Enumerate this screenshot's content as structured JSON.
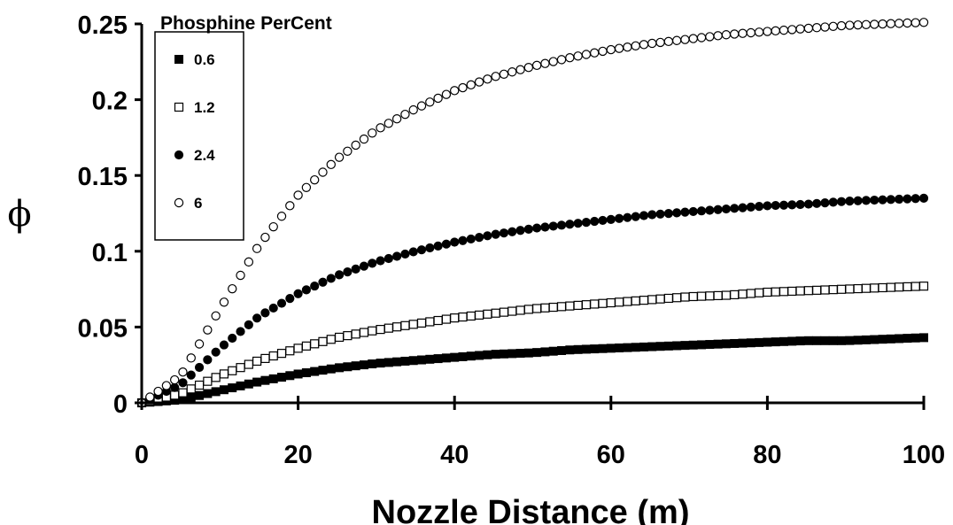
{
  "chart_data": {
    "type": "scatter",
    "title": "",
    "xlabel": "Nozzle Distance (m)",
    "ylabel": "ϕ",
    "xlim": [
      0,
      100
    ],
    "ylim": [
      0,
      0.25
    ],
    "x_ticks": [
      0,
      20,
      40,
      60,
      80,
      100
    ],
    "x_tick_labels": [
      "0",
      "20",
      "40",
      "60",
      "80",
      "100"
    ],
    "y_ticks": [
      0,
      0.05,
      0.1,
      0.15,
      0.2,
      0.25
    ],
    "y_tick_labels": [
      "0",
      "0.05",
      "0.1",
      "0.15",
      "0.2",
      "0.25"
    ],
    "grid": false,
    "legend": {
      "title": "Phosphine PerCent",
      "placement": "top-left"
    },
    "x": [
      0,
      5,
      10,
      15,
      20,
      25,
      30,
      35,
      40,
      45,
      50,
      55,
      60,
      65,
      70,
      75,
      80,
      85,
      90,
      95,
      100
    ],
    "series": [
      {
        "name": "0.6",
        "marker": "filled-square",
        "values": [
          0,
          0.002,
          0.008,
          0.014,
          0.019,
          0.023,
          0.026,
          0.028,
          0.03,
          0.032,
          0.033,
          0.035,
          0.036,
          0.037,
          0.038,
          0.039,
          0.04,
          0.041,
          0.041,
          0.042,
          0.043
        ]
      },
      {
        "name": "1.2",
        "marker": "open-square",
        "values": [
          0,
          0.006,
          0.018,
          0.028,
          0.036,
          0.043,
          0.048,
          0.052,
          0.056,
          0.059,
          0.062,
          0.064,
          0.066,
          0.068,
          0.07,
          0.071,
          0.073,
          0.074,
          0.075,
          0.076,
          0.077
        ]
      },
      {
        "name": "2.4",
        "marker": "filled-circle",
        "values": [
          0,
          0.012,
          0.036,
          0.057,
          0.072,
          0.084,
          0.093,
          0.1,
          0.106,
          0.111,
          0.115,
          0.118,
          0.121,
          0.124,
          0.126,
          0.128,
          0.13,
          0.131,
          0.133,
          0.134,
          0.135
        ]
      },
      {
        "name": "6",
        "marker": "open-circle",
        "values": [
          0,
          0.018,
          0.062,
          0.104,
          0.137,
          0.161,
          0.18,
          0.194,
          0.206,
          0.215,
          0.222,
          0.228,
          0.233,
          0.237,
          0.24,
          0.243,
          0.245,
          0.247,
          0.249,
          0.25,
          0.251
        ]
      }
    ]
  }
}
